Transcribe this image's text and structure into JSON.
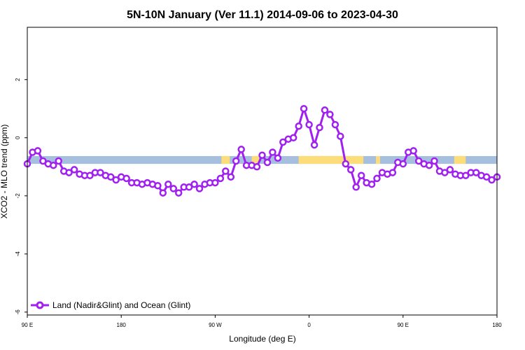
{
  "chart_data": {
    "type": "line",
    "title": "5N-10N January (Ver 11.1)   2014-09-06 to 2023-04-30",
    "xlabel": "Longitude (deg E)",
    "ylabel": "XCO2 - MLO trend (ppm)",
    "x_axis": {
      "range_deg_east": [
        90,
        450
      ],
      "ticks": [
        {
          "value": 90,
          "label": "90 E"
        },
        {
          "value": 180,
          "label": "180"
        },
        {
          "value": 270,
          "label": "90 W"
        },
        {
          "value": 360,
          "label": "0"
        },
        {
          "value": 450,
          "label": "90 E"
        },
        {
          "value": 540,
          "label": "180"
        }
      ],
      "range_deg_east_full": [
        90,
        540
      ]
    },
    "y_axis": {
      "range": [
        -6.1,
        3.8
      ],
      "ticks": [
        -6,
        -4,
        -2,
        0,
        2
      ]
    },
    "grid": false,
    "legend": {
      "placement": "bottom-left",
      "entries": [
        {
          "label": "Land (Nadir&Glint) and Ocean (Glint)",
          "color": "#a020f0"
        }
      ]
    },
    "surface_band": {
      "y_range": [
        -0.9,
        -0.63
      ],
      "ocean_color": "#a7bfde",
      "land_color": "#fddc7a",
      "land_segments": [
        [
          276,
          284
        ],
        [
          305,
          312
        ],
        [
          350,
          412
        ],
        [
          424,
          428
        ],
        [
          499,
          510
        ]
      ]
    },
    "series": [
      {
        "name": "Land (Nadir&Glint) and Ocean (Glint)",
        "color": "#a020f0",
        "x": [
          90,
          95,
          100,
          105,
          110,
          115,
          120,
          125,
          130,
          135,
          140,
          145,
          150,
          155,
          160,
          165,
          170,
          175,
          180,
          185,
          190,
          195,
          200,
          205,
          210,
          215,
          220,
          225,
          230,
          235,
          240,
          245,
          250,
          255,
          260,
          265,
          270,
          275,
          280,
          285,
          290,
          295,
          300,
          305,
          310,
          315,
          320,
          325,
          330,
          335,
          340,
          345,
          350,
          355,
          360,
          365,
          370,
          375,
          380,
          385,
          390,
          395,
          400,
          405,
          410,
          415,
          420,
          425,
          430,
          435,
          440,
          445,
          450,
          455,
          460,
          465,
          470,
          475,
          480,
          485,
          490,
          495,
          500,
          505,
          510,
          515,
          520,
          525,
          530,
          535,
          540
        ],
        "values": [
          -0.9,
          -0.5,
          -0.45,
          -0.8,
          -0.9,
          -0.95,
          -0.8,
          -1.15,
          -1.2,
          -1.1,
          -1.25,
          -1.3,
          -1.3,
          -1.2,
          -1.2,
          -1.3,
          -1.35,
          -1.45,
          -1.35,
          -1.4,
          -1.55,
          -1.55,
          -1.6,
          -1.55,
          -1.6,
          -1.65,
          -1.9,
          -1.6,
          -1.75,
          -1.9,
          -1.7,
          -1.7,
          -1.6,
          -1.75,
          -1.6,
          -1.55,
          -1.55,
          -1.4,
          -1.15,
          -1.35,
          -0.8,
          -0.4,
          -0.95,
          -0.95,
          -1.0,
          -0.6,
          -0.85,
          -0.5,
          -0.7,
          -0.15,
          -0.05,
          0.0,
          0.4,
          1.0,
          0.45,
          -0.25,
          0.35,
          0.95,
          0.8,
          0.45,
          0.05,
          -0.9,
          -1.1,
          -1.7,
          -1.3,
          -1.55,
          -1.6,
          -1.4,
          -1.2,
          -1.25,
          -1.2,
          -0.85,
          -0.9,
          -0.5,
          -0.45,
          -0.8,
          -0.9,
          -0.95,
          -0.8,
          -1.15,
          -1.2,
          -1.1,
          -1.25,
          -1.3,
          -1.3,
          -1.2,
          -1.2,
          -1.3,
          -1.35,
          -1.45,
          -1.35
        ]
      }
    ]
  }
}
